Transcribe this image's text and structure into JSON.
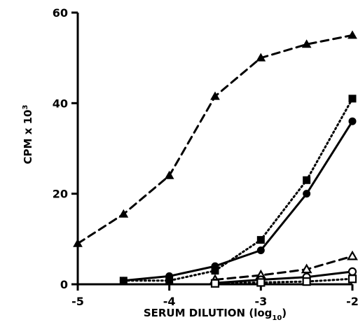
{
  "chart_data": {
    "type": "line",
    "xlabel": "SERUM DILUTION (log",
    "xlabel_sub": "10",
    "xlabel_close": ")",
    "ylabel": "CPM x 10",
    "ylabel_sup": "3",
    "xlim": [
      -5,
      -2
    ],
    "ylim": [
      0,
      60
    ],
    "xticks": [
      -5,
      -4,
      -3,
      -2
    ],
    "xtick_labels": [
      "-5",
      "-4",
      "-3",
      "-2"
    ],
    "yticks": [
      0,
      20,
      40,
      60
    ],
    "ytick_labels": [
      "0",
      "20",
      "40",
      "60"
    ],
    "grid": false,
    "legend": "none",
    "series": [
      {
        "marker": "filled-triangle",
        "line": "dashed",
        "x": [
          -5,
          -4.5,
          -4,
          -3.5,
          -3,
          -2.5,
          -2
        ],
        "y": [
          9,
          15.5,
          24,
          41.5,
          50,
          53,
          55
        ]
      },
      {
        "marker": "filled-square",
        "line": "dotted",
        "x": [
          -4.5,
          -4,
          -3.5,
          -3,
          -2.5,
          -2
        ],
        "y": [
          0.8,
          0.8,
          3,
          9.8,
          23,
          41
        ]
      },
      {
        "marker": "filled-circle",
        "line": "solid",
        "x": [
          -4.5,
          -4,
          -3.5,
          -3,
          -2.5,
          -2
        ],
        "y": [
          0.8,
          1.8,
          4,
          7.5,
          20,
          36
        ]
      },
      {
        "marker": "open-triangle",
        "line": "dashed",
        "x": [
          -3.5,
          -3,
          -2.5,
          -2
        ],
        "y": [
          1,
          2,
          3.3,
          6.2
        ]
      },
      {
        "marker": "open-circle",
        "line": "solid",
        "x": [
          -3.5,
          -3,
          -2.5,
          -2
        ],
        "y": [
          0.3,
          1,
          1.6,
          2.8
        ]
      },
      {
        "marker": "open-square",
        "line": "dotted",
        "x": [
          -3.5,
          -3,
          -2.5,
          -2
        ],
        "y": [
          0.2,
          0.4,
          0.6,
          1.2
        ]
      }
    ]
  }
}
